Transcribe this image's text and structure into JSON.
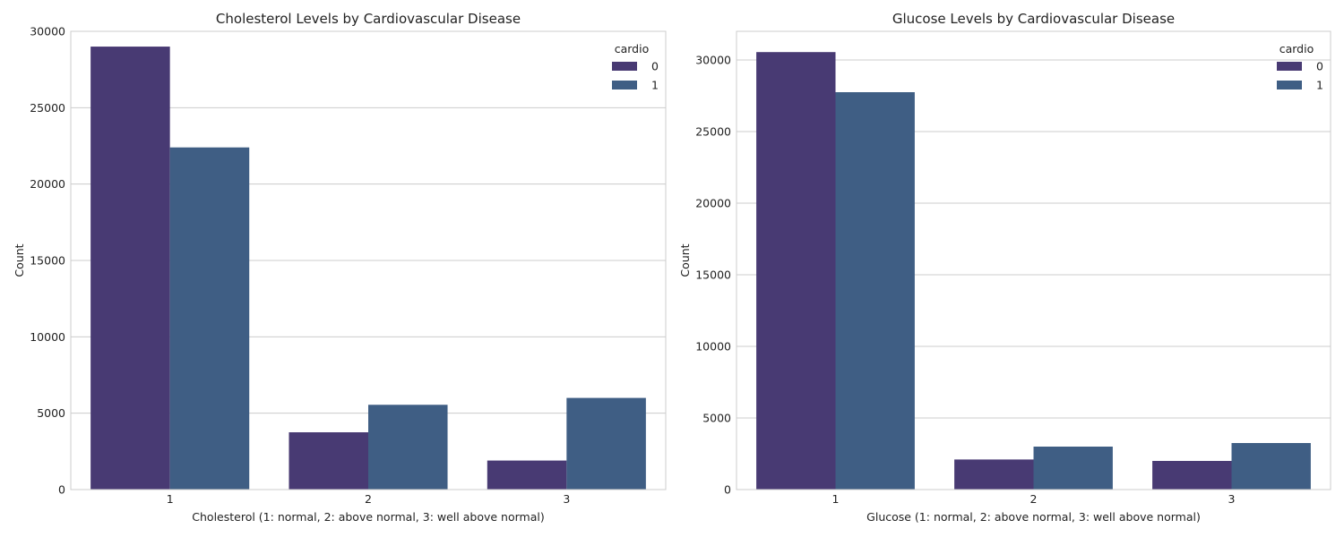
{
  "chart_data": [
    {
      "type": "bar",
      "title": "Cholesterol Levels by Cardiovascular Disease",
      "xlabel": "Cholesterol (1: normal, 2: above normal, 3: well above normal)",
      "ylabel": "Count",
      "categories": [
        "1",
        "2",
        "3"
      ],
      "ylim": [
        0,
        30000
      ],
      "yticks": [
        0,
        5000,
        10000,
        15000,
        20000,
        25000,
        30000
      ],
      "grid": true,
      "legend": {
        "title": "cardio",
        "placement": "top-right"
      },
      "series": [
        {
          "name": "0",
          "color": "#483a73",
          "values": [
            29000,
            3750,
            1900
          ]
        },
        {
          "name": "1",
          "color": "#3f5e84",
          "values": [
            22400,
            5550,
            6000
          ]
        }
      ]
    },
    {
      "type": "bar",
      "title": "Glucose Levels by Cardiovascular Disease",
      "xlabel": "Glucose (1: normal, 2: above normal, 3: well above normal)",
      "ylabel": "Count",
      "categories": [
        "1",
        "2",
        "3"
      ],
      "ylim": [
        0,
        32000
      ],
      "yticks": [
        0,
        5000,
        10000,
        15000,
        20000,
        25000,
        30000
      ],
      "grid": true,
      "legend": {
        "title": "cardio",
        "placement": "top-right"
      },
      "series": [
        {
          "name": "0",
          "color": "#483a73",
          "values": [
            30550,
            2100,
            2000
          ]
        },
        {
          "name": "1",
          "color": "#3f5e84",
          "values": [
            27750,
            3000,
            3250
          ]
        }
      ]
    }
  ]
}
